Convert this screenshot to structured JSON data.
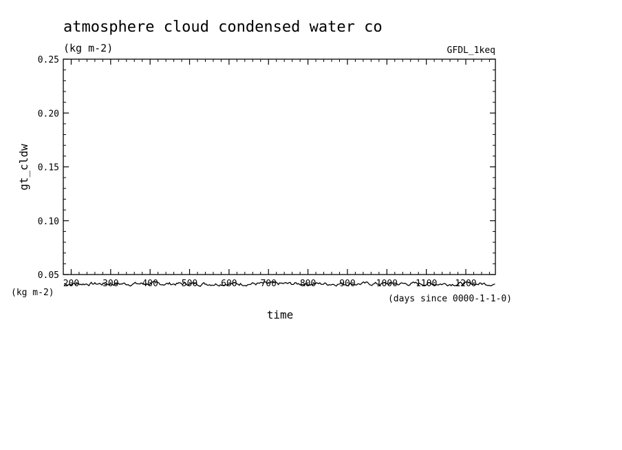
{
  "chart_data": {
    "type": "line",
    "title": "atmosphere cloud condensed water co",
    "subtitle": "(kg m-2)",
    "source_label": "GFDL_1keq",
    "ylabel": "gt_cldw",
    "xlabel": "time",
    "x_units_label": "(days since 0000-1-1-0)",
    "y_units_label": "(kg m-2)",
    "xlim": [
      180,
      1275
    ],
    "ylim": [
      0.05,
      0.25
    ],
    "x_ticks": [
      200,
      300,
      400,
      500,
      600,
      700,
      800,
      900,
      1000,
      1100,
      1200
    ],
    "y_ticks": [
      0.05,
      0.1,
      0.15,
      0.2,
      0.25
    ],
    "y_tick_labels": [
      "0.05",
      "0.10",
      "0.15",
      "0.20",
      "0.25"
    ],
    "grid": false,
    "series": [
      {
        "color": "#000000",
        "x_start": 182,
        "x_end": 1275,
        "x_step": 3,
        "y_mean": 0.0414,
        "y_amplitude": 0.003
      }
    ]
  }
}
